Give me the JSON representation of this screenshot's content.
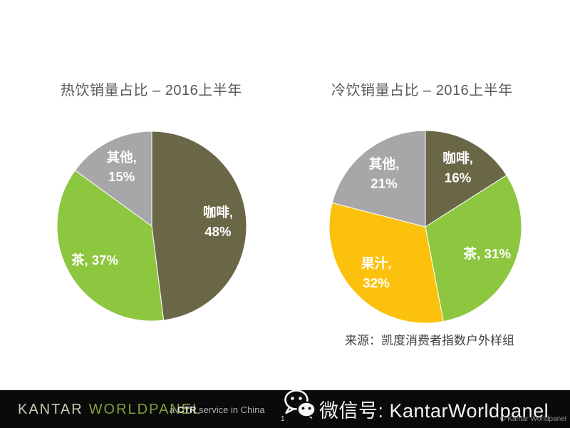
{
  "chart_data": [
    {
      "type": "pie",
      "title": "热饮销量占比 – 2016上半年",
      "categories": [
        "咖啡",
        "茶",
        "其他"
      ],
      "values": [
        48,
        37,
        15
      ],
      "unit": "%",
      "colors": [
        "#6a6747",
        "#8dc63f",
        "#a7a7a9"
      ],
      "slice_ids": [
        "coffee",
        "tea",
        "other"
      ],
      "labels": [
        [
          "咖啡,",
          "48%"
        ],
        [
          "茶, 37%"
        ],
        [
          "其他,",
          "15%"
        ]
      ],
      "start_angle_deg": 0,
      "direction": "clockwise",
      "legend": "none",
      "label_color": "#ffffff"
    },
    {
      "type": "pie",
      "title": "冷饮销量占比 – 2016上半年",
      "categories": [
        "咖啡",
        "茶",
        "果汁",
        "其他"
      ],
      "values": [
        16,
        31,
        32,
        21
      ],
      "unit": "%",
      "colors": [
        "#6a6747",
        "#8dc63f",
        "#fcc10d",
        "#a7a7a9"
      ],
      "slice_ids": [
        "coffee",
        "tea",
        "juice",
        "other"
      ],
      "labels": [
        [
          "咖啡,",
          "16%"
        ],
        [
          "茶, 31%"
        ],
        [
          "果汁,",
          "32%"
        ],
        [
          "其他,",
          "21%"
        ]
      ],
      "start_angle_deg": 0,
      "direction": "clockwise",
      "legend": "none",
      "label_color": "#ffffff"
    }
  ],
  "source_note": "来源：凯度消费者指数户外样组",
  "footer": {
    "logo": {
      "kantar": "KANTAR",
      "worldpanel": "WORLDPANEL"
    },
    "tagline": {
      "prefix": "a ",
      "bold": "CTR",
      "suffix": " service in China"
    },
    "page_number": "1",
    "wechat": {
      "icon": "wechat-bubbles-icon",
      "label": "微信号: KantarWorldpanel"
    },
    "copyright": "© Kantar Worldpanel",
    "colors": {
      "bar": "#0a0a0a",
      "kantar": "#c6ccb4",
      "worldpanel": "#7ea03f",
      "tagline": "#b0b0b0",
      "tagline_bold": "#ececec",
      "wechat_text": "#f3f3f3",
      "copyright": "#8f8f8f"
    }
  },
  "title_color": "#595959"
}
